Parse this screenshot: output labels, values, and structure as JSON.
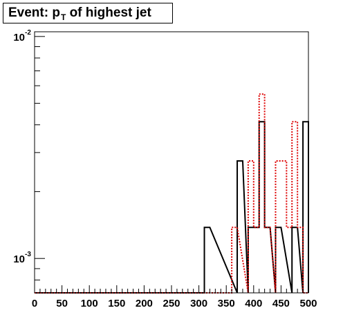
{
  "chart_data": {
    "type": "histogram",
    "title": {
      "prefix": "Event: p",
      "subscript": "T",
      "suffix": " of highest jet"
    },
    "xlabel": "",
    "ylabel": "",
    "xlim": [
      0,
      500
    ],
    "ylim": [
      0.0007,
      0.0105
    ],
    "yscale": "log",
    "bin_width": 10,
    "x_ticks": [
      0,
      50,
      100,
      150,
      200,
      250,
      300,
      350,
      400,
      450,
      500
    ],
    "x_tick_labels": [
      "0",
      "50",
      "100",
      "150",
      "200",
      "250",
      "300",
      "350",
      "400",
      "450",
      "500"
    ],
    "y_ticks": [
      {
        "value": 0.01,
        "base": "10",
        "exp": "-2"
      },
      {
        "value": 0.001,
        "base": "10",
        "exp": "-3"
      }
    ],
    "grid": false,
    "legend": "none",
    "series": [
      {
        "style": "solid",
        "color": "#000000",
        "bins": [
          {
            "x": 310,
            "y": 0.00138
          },
          {
            "x": 370,
            "y": 0.00275
          },
          {
            "x": 390,
            "y": 0.00138
          },
          {
            "x": 400,
            "y": 0.00138
          },
          {
            "x": 410,
            "y": 0.00413
          },
          {
            "x": 420,
            "y": 0.00138
          },
          {
            "x": 440,
            "y": 0.00138
          },
          {
            "x": 470,
            "y": 0.00138
          },
          {
            "x": 490,
            "y": 0.00413
          }
        ]
      },
      {
        "style": "dotted",
        "color": "#dd0000",
        "bins": [
          {
            "x": 360,
            "y": 0.00138
          },
          {
            "x": 390,
            "y": 0.00275
          },
          {
            "x": 400,
            "y": 0.00138
          },
          {
            "x": 410,
            "y": 0.0055
          },
          {
            "x": 420,
            "y": 0.00138
          },
          {
            "x": 440,
            "y": 0.00275
          },
          {
            "x": 450,
            "y": 0.00275
          },
          {
            "x": 460,
            "y": 0.00138
          },
          {
            "x": 470,
            "y": 0.00413
          },
          {
            "x": 480,
            "y": 0.00138
          }
        ]
      }
    ]
  }
}
